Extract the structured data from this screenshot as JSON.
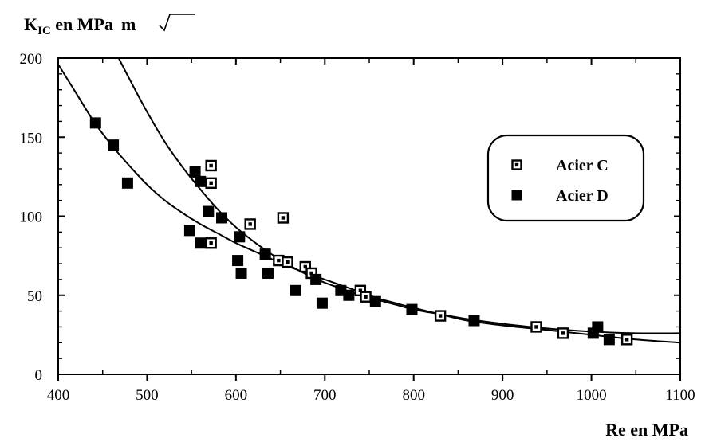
{
  "chart_data": {
    "type": "scatter",
    "title": "",
    "ylabel": {
      "main": "K",
      "sub": "IC",
      "rest": " en  MPa",
      "sqrt": "m"
    },
    "xlabel": "Re  en  MPa",
    "xlim": [
      400,
      1100
    ],
    "ylim": [
      0,
      200
    ],
    "xticks": [
      400,
      500,
      600,
      700,
      800,
      900,
      1000,
      1100
    ],
    "yticks": [
      0,
      50,
      100,
      150,
      200
    ],
    "legend_position": "upper-right",
    "series": [
      {
        "name": "Acier C",
        "marker": "open-square",
        "points": [
          [
            572,
            132
          ],
          [
            572,
            121
          ],
          [
            653,
            99
          ],
          [
            616,
            95
          ],
          [
            572,
            83
          ],
          [
            648,
            72
          ],
          [
            678,
            68
          ],
          [
            658,
            71
          ],
          [
            685,
            64
          ],
          [
            740,
            53
          ],
          [
            746,
            49
          ],
          [
            830,
            37
          ],
          [
            938,
            30
          ],
          [
            968,
            26
          ],
          [
            1040,
            22
          ]
        ]
      },
      {
        "name": "Acier D",
        "marker": "filled-square",
        "points": [
          [
            442,
            159
          ],
          [
            462,
            145
          ],
          [
            478,
            121
          ],
          [
            554,
            128
          ],
          [
            560,
            122
          ],
          [
            569,
            103
          ],
          [
            584,
            99
          ],
          [
            548,
            91
          ],
          [
            604,
            87
          ],
          [
            560,
            83
          ],
          [
            602,
            72
          ],
          [
            633,
            76
          ],
          [
            606,
            64
          ],
          [
            636,
            64
          ],
          [
            690,
            60
          ],
          [
            667,
            53
          ],
          [
            697,
            45
          ],
          [
            718,
            53
          ],
          [
            727,
            50
          ],
          [
            757,
            46
          ],
          [
            798,
            41
          ],
          [
            868,
            34
          ],
          [
            1007,
            30
          ],
          [
            1002,
            26
          ],
          [
            1020,
            22
          ]
        ]
      }
    ],
    "curves": [
      {
        "series": "Acier C",
        "x": [
          468,
          480,
          500,
          520,
          540,
          560,
          580,
          600,
          620,
          640,
          660,
          680,
          700,
          720,
          740,
          760,
          780,
          800,
          830,
          860,
          900,
          950,
          1000,
          1050,
          1100
        ],
        "y": [
          200,
          187,
          166,
          147,
          131,
          117,
          104,
          93,
          84,
          76,
          69,
          63,
          58,
          54,
          50,
          47,
          44,
          41,
          38,
          35,
          32,
          29,
          27,
          26,
          26
        ]
      },
      {
        "series": "Acier D",
        "x": [
          400,
          420,
          440,
          460,
          480,
          500,
          520,
          540,
          560,
          580,
          600,
          620,
          640,
          660,
          680,
          700,
          720,
          740,
          760,
          780,
          800,
          830,
          860,
          900,
          950,
          1000,
          1050,
          1100
        ],
        "y": [
          196,
          178,
          160,
          145,
          132,
          120,
          110,
          102,
          95,
          89,
          83,
          78,
          73,
          68,
          64,
          60,
          56,
          52,
          48,
          45,
          42,
          38,
          34,
          31,
          28,
          25,
          22,
          20
        ]
      }
    ]
  }
}
